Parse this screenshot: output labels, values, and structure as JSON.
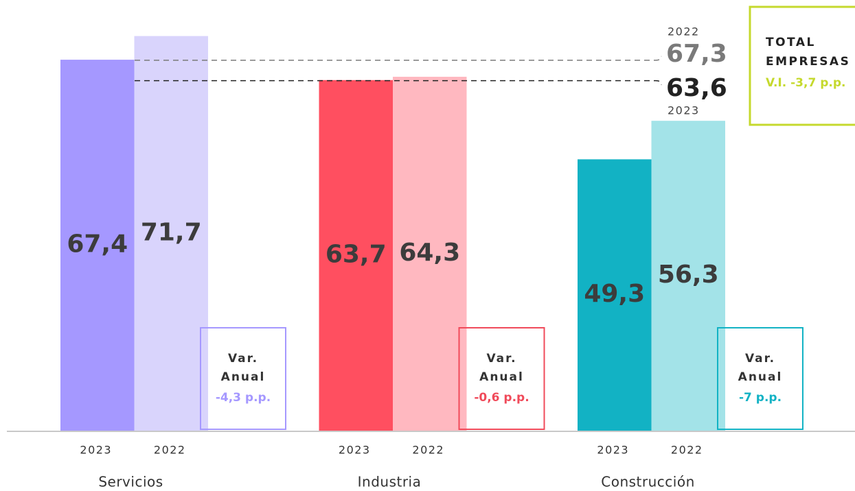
{
  "chart_data": {
    "type": "bar",
    "categories": [
      "Servicios",
      "Industria",
      "Construcción"
    ],
    "series": [
      {
        "name": "2023",
        "colors": [
          "#a598ff",
          "#ff4f60",
          "#12b2c4"
        ],
        "values": [
          67.4,
          63.7,
          49.3
        ],
        "value_labels": [
          "67,4",
          "63,7",
          "49,3"
        ]
      },
      {
        "name": "2022",
        "colors": [
          "#d9d4fc",
          "#ffb8c0",
          "#a3e3e8"
        ],
        "values": [
          71.7,
          64.3,
          56.3
        ],
        "value_labels": [
          "71,7",
          "64,3",
          "56,3"
        ]
      }
    ],
    "ylim": [
      0,
      78
    ],
    "variation_title": [
      "Var.",
      "Anual"
    ],
    "variations": {
      "colors": [
        "#a598ff",
        "#f04a5a",
        "#12b2c4"
      ],
      "values": [
        -4.3,
        -0.6,
        -7
      ],
      "value_labels": [
        "-4,3 p.p.",
        "-0,6 p.p.",
        "-7 p.p."
      ]
    },
    "reference_lines": [
      {
        "label": "2022",
        "value": 67.3,
        "value_label": "67,3",
        "color": "#7a7a7a"
      },
      {
        "label": "2023",
        "value": 63.6,
        "value_label": "63,6",
        "color": "#222222"
      }
    ],
    "total": {
      "title": [
        "TOTAL",
        "EMPRESAS"
      ],
      "variation": -3.7,
      "variation_label": "V.I. -3,7 p.p.",
      "color": "#c5d92d"
    }
  }
}
